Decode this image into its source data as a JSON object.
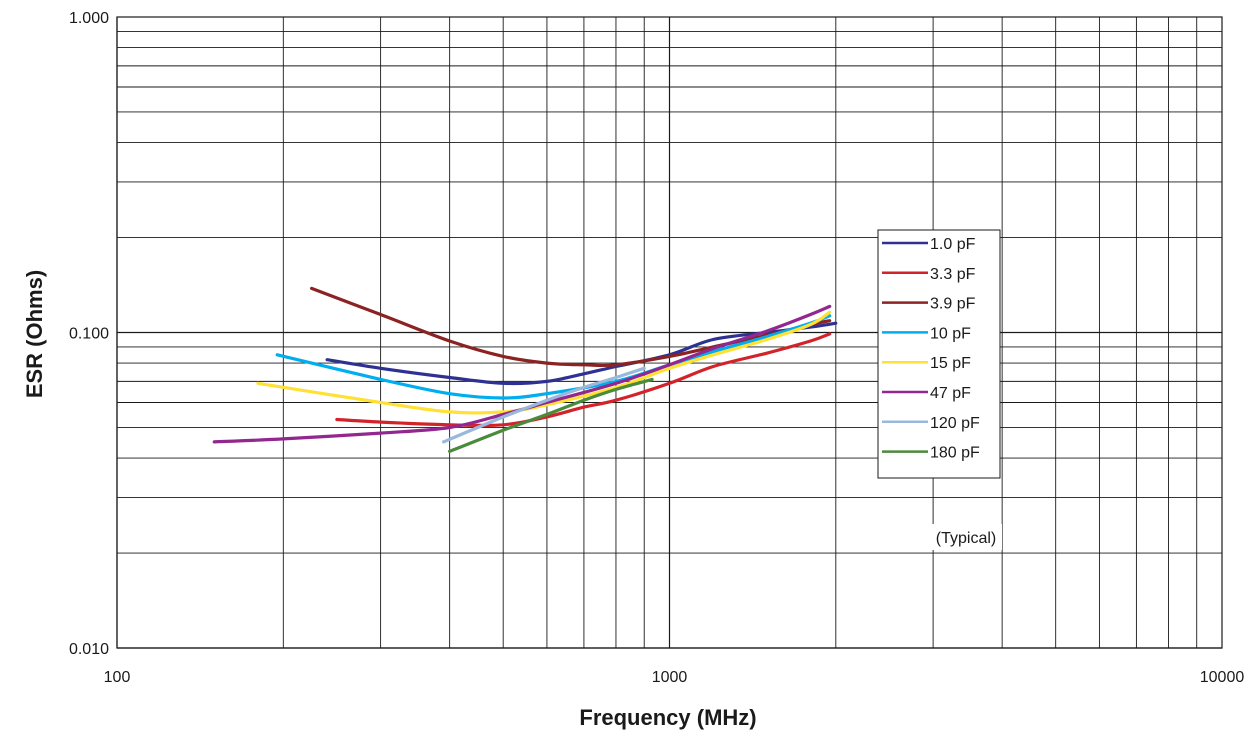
{
  "chart_data": {
    "type": "line",
    "title": "",
    "xlabel": "Frequency (MHz)",
    "ylabel": "ESR (Ohms)",
    "x_scale": "log",
    "y_scale": "log",
    "xlim": [
      100,
      10000
    ],
    "ylim": [
      0.01,
      1.0
    ],
    "x_ticks": [
      {
        "value": 100,
        "label": "100"
      },
      {
        "value": 1000,
        "label": "1000"
      },
      {
        "value": 10000,
        "label": "10000"
      }
    ],
    "y_ticks": [
      {
        "value": 1.0,
        "label": "1.000"
      },
      {
        "value": 0.1,
        "label": "0.100"
      },
      {
        "value": 0.01,
        "label": "0.010"
      }
    ],
    "grid": true,
    "legend_position": "right",
    "annotation": "(Typical)",
    "series": [
      {
        "name": "1.0 pF",
        "color": "#2e3192",
        "x": [
          240,
          300,
          400,
          500,
          600,
          700,
          800,
          1000,
          1200,
          1500,
          1800,
          2000
        ],
        "y": [
          0.082,
          0.077,
          0.072,
          0.069,
          0.07,
          0.074,
          0.078,
          0.085,
          0.095,
          0.1,
          0.104,
          0.107
        ]
      },
      {
        "name": "3.3 pF",
        "color": "#d2232a",
        "x": [
          250,
          300,
          400,
          500,
          600,
          700,
          800,
          1000,
          1200,
          1500,
          1800,
          1950
        ],
        "y": [
          0.053,
          0.052,
          0.051,
          0.051,
          0.054,
          0.058,
          0.061,
          0.069,
          0.078,
          0.086,
          0.094,
          0.099
        ]
      },
      {
        "name": "3.9 pF",
        "color": "#8b2323",
        "x": [
          225,
          300,
          400,
          500,
          600,
          700,
          800,
          1000,
          1200,
          1500,
          1800,
          1950
        ],
        "y": [
          0.138,
          0.114,
          0.094,
          0.084,
          0.08,
          0.079,
          0.079,
          0.084,
          0.09,
          0.098,
          0.106,
          0.109
        ]
      },
      {
        "name": "10 pF",
        "color": "#00aeef",
        "x": [
          195,
          300,
          400,
          500,
          600,
          800,
          1000,
          1200,
          1500,
          1800,
          1950
        ],
        "y": [
          0.085,
          0.071,
          0.064,
          0.062,
          0.064,
          0.07,
          0.079,
          0.087,
          0.097,
          0.107,
          0.113
        ]
      },
      {
        "name": "15 pF",
        "color": "#ffe135",
        "x": [
          180,
          300,
          400,
          500,
          600,
          800,
          1000,
          1200,
          1500,
          1800,
          1950
        ],
        "y": [
          0.069,
          0.06,
          0.056,
          0.056,
          0.059,
          0.067,
          0.077,
          0.085,
          0.095,
          0.106,
          0.116
        ]
      },
      {
        "name": "47 pF",
        "color": "#92278f",
        "x": [
          150,
          200,
          300,
          400,
          500,
          600,
          800,
          1000,
          1200,
          1500,
          1800,
          1950
        ],
        "y": [
          0.045,
          0.046,
          0.048,
          0.05,
          0.055,
          0.06,
          0.069,
          0.079,
          0.089,
          0.101,
          0.114,
          0.121
        ]
      },
      {
        "name": "120 pF",
        "color": "#9ab8dc",
        "x": [
          390,
          500,
          600,
          700,
          800,
          900
        ],
        "y": [
          0.045,
          0.054,
          0.061,
          0.067,
          0.072,
          0.077
        ]
      },
      {
        "name": "180 pF",
        "color": "#4a8b3b",
        "x": [
          400,
          500,
          600,
          700,
          800,
          930
        ],
        "y": [
          0.042,
          0.049,
          0.055,
          0.061,
          0.066,
          0.071
        ]
      }
    ]
  }
}
